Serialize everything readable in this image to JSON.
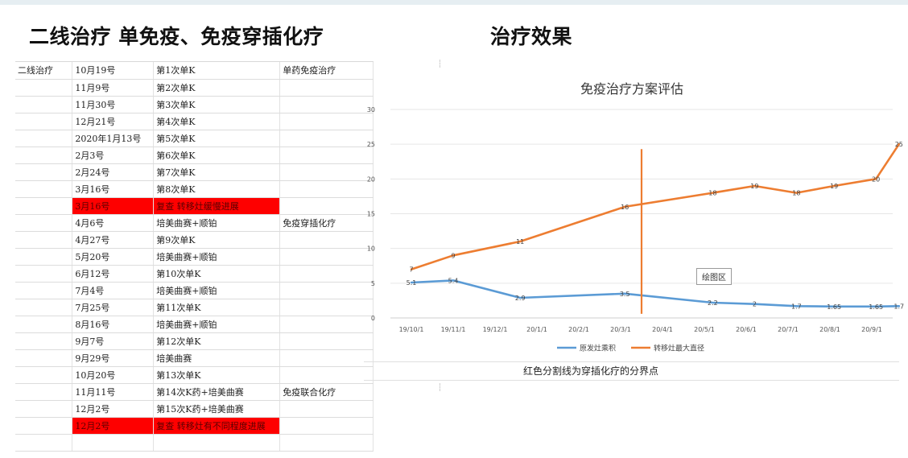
{
  "slide": {
    "title_left": "二线治疗 单免疫、免疫穿插化疗",
    "title_right": "治疗效果"
  },
  "table": {
    "rows": [
      {
        "c0": "二线治疗",
        "c1": "10月19号",
        "c2": "第1次单K",
        "c3": "单药免疫治疗",
        "red": false
      },
      {
        "c0": "",
        "c1": "11月9号",
        "c2": "第2次单K",
        "c3": "",
        "red": false
      },
      {
        "c0": "",
        "c1": "11月30号",
        "c2": "第3次单K",
        "c3": "",
        "red": false
      },
      {
        "c0": "",
        "c1": "12月21号",
        "c2": "第4次单K",
        "c3": "",
        "red": false
      },
      {
        "c0": "",
        "c1": "2020年1月13号",
        "c2": "第5次单K",
        "c3": "",
        "red": false
      },
      {
        "c0": "",
        "c1": "2月3号",
        "c2": "第6次单K",
        "c3": "",
        "red": false
      },
      {
        "c0": "",
        "c1": "2月24号",
        "c2": "第7次单K",
        "c3": "",
        "red": false
      },
      {
        "c0": "",
        "c1": "3月16号",
        "c2": "第8次单K",
        "c3": "",
        "red": false
      },
      {
        "c0": "",
        "c1": "3月16号",
        "c2": "复查 转移灶缓慢进展",
        "c3": "",
        "red": true
      },
      {
        "c0": "",
        "c1": "4月6号",
        "c2": "培美曲赛+顺铂",
        "c3": "免疫穿插化疗",
        "red": false
      },
      {
        "c0": "",
        "c1": "4月27号",
        "c2": "第9次单K",
        "c3": "",
        "red": false
      },
      {
        "c0": "",
        "c1": "5月20号",
        "c2": "培美曲赛+顺铂",
        "c3": "",
        "red": false
      },
      {
        "c0": "",
        "c1": "6月12号",
        "c2": "第10次单K",
        "c3": "",
        "red": false
      },
      {
        "c0": "",
        "c1": "7月4号",
        "c2": "培美曲赛+顺铂",
        "c3": "",
        "red": false
      },
      {
        "c0": "",
        "c1": "7月25号",
        "c2": "第11次单K",
        "c3": "",
        "red": false
      },
      {
        "c0": "",
        "c1": "8月16号",
        "c2": "培美曲赛+顺铂",
        "c3": "",
        "red": false
      },
      {
        "c0": "",
        "c1": "9月7号",
        "c2": "第12次单K",
        "c3": "",
        "red": false
      },
      {
        "c0": "",
        "c1": "9月29号",
        "c2": "培美曲赛",
        "c3": "",
        "red": false
      },
      {
        "c0": "",
        "c1": "10月20号",
        "c2": "第13次单K",
        "c3": "",
        "red": false
      },
      {
        "c0": "",
        "c1": "11月11号",
        "c2": "第14次K药+培美曲赛",
        "c3": "免疫联合化疗",
        "red": false
      },
      {
        "c0": "",
        "c1": "12月2号",
        "c2": "第15次K药+培美曲赛",
        "c3": "",
        "red": false
      },
      {
        "c0": "",
        "c1": "12月2号",
        "c2": "复查 转移灶有不同程度进展",
        "c3": "",
        "red": true
      },
      {
        "c0": "",
        "c1": "",
        "c2": "",
        "c3": "",
        "red": false
      }
    ]
  },
  "chart_note": "红色分割线为穿插化疗的分界点",
  "plot_area_label": "绘图区",
  "chart_data": {
    "type": "line",
    "title": "免疫治疗方案评估",
    "categories": [
      "19/10/1",
      "19/11/1",
      "19/12/1",
      "20/1/1",
      "20/2/1",
      "20/3/1",
      "20/4/1",
      "20/5/1",
      "20/6/1",
      "20/7/1",
      "20/8/1",
      "20/9/1"
    ],
    "x": [
      0,
      1,
      2.6,
      5.1,
      7.2,
      8.2,
      9.2,
      10.1,
      11.1,
      11.65
    ],
    "series": [
      {
        "name": "原发灶乘积",
        "color": "#5b9bd5",
        "values": [
          5.1,
          5.4,
          2.9,
          3.5,
          2.2,
          2,
          1.7,
          1.65,
          1.65,
          1.7
        ],
        "labels": [
          "5.1",
          "5.4",
          "2.9",
          "3.5",
          "2.2",
          "2",
          "1.7",
          "1.65",
          "1.65",
          "1.7"
        ]
      },
      {
        "name": "转移灶最大直径",
        "color": "#ed7d31",
        "values": [
          7,
          9,
          11,
          16,
          18,
          19,
          18,
          19,
          20,
          25
        ],
        "labels": [
          "7",
          "9",
          "11",
          "16",
          "18",
          "19",
          "18",
          "19",
          "20",
          "25"
        ]
      }
    ],
    "divider_x": 5.5,
    "divider_color": "#ed7d31",
    "ylim": [
      0,
      30
    ],
    "yticks": [
      0,
      5,
      10,
      15,
      20,
      25,
      30
    ],
    "grid": true,
    "legend_position": "bottom"
  }
}
